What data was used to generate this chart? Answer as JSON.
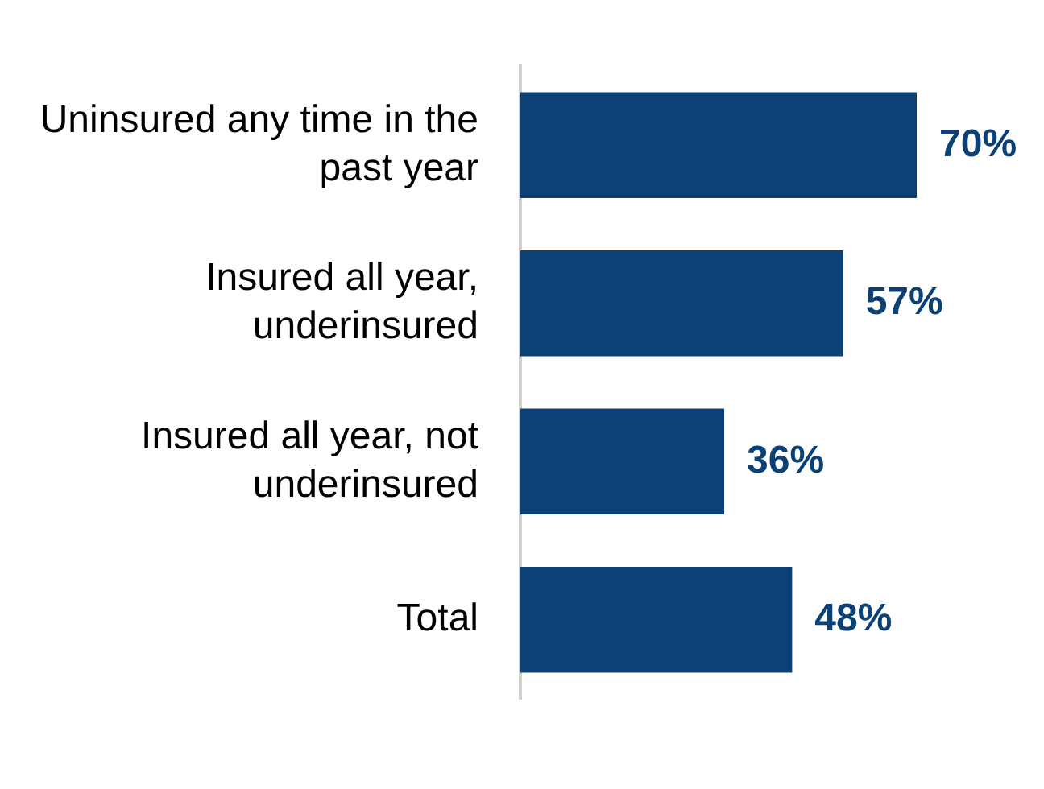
{
  "chart_data": {
    "type": "bar",
    "orientation": "horizontal",
    "categories": [
      "Uninsured any time in the past year",
      "Insured all year, underinsured",
      "Insured all year, not underinsured",
      "Total"
    ],
    "values": [
      70,
      57,
      36,
      48
    ],
    "color": "#0b4174",
    "value_labels": [
      "70%",
      "57%",
      "36%",
      "48%"
    ],
    "tick_labels": "y",
    "grid": false,
    "legend": false
  }
}
